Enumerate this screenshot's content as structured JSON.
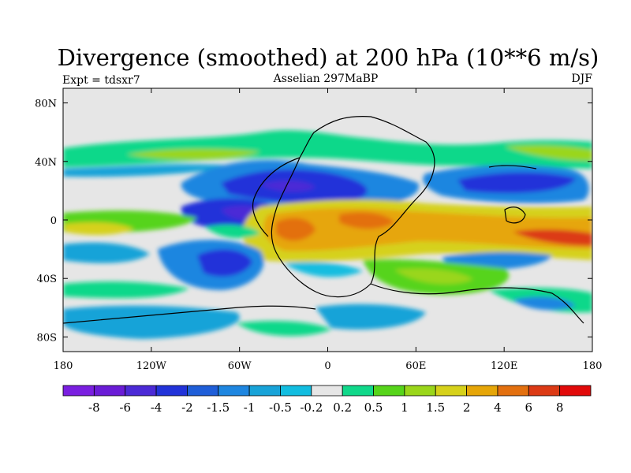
{
  "chart_data": {
    "type": "heatmap",
    "title": "Divergence (smoothed) at 200 hPa (10**6 m/s)",
    "subtitle_left": "Expt = tdsxr7",
    "subtitle_center": "Asselian 297MaBP",
    "subtitle_right": "DJF",
    "xlim": [
      -180,
      180
    ],
    "ylim": [
      -90,
      90
    ],
    "x_ticks": [
      {
        "value": -180,
        "label": "180"
      },
      {
        "value": -120,
        "label": "120W"
      },
      {
        "value": -60,
        "label": "60W"
      },
      {
        "value": 0,
        "label": "0"
      },
      {
        "value": 60,
        "label": "60E"
      },
      {
        "value": 120,
        "label": "120E"
      },
      {
        "value": 180,
        "label": "180"
      }
    ],
    "y_ticks": [
      {
        "value": 80,
        "label": "80N"
      },
      {
        "value": 40,
        "label": "40N"
      },
      {
        "value": 0,
        "label": "0"
      },
      {
        "value": -40,
        "label": "40S"
      },
      {
        "value": -80,
        "label": "80S"
      }
    ],
    "colorbar": {
      "levels": [
        "-8",
        "-6",
        "-4",
        "-2",
        "-1.5",
        "-1",
        "-0.5",
        "-0.2",
        "0.2",
        "0.5",
        "1",
        "1.5",
        "2",
        "4",
        "6",
        "8"
      ],
      "colors": [
        "#7a1fe0",
        "#6a1cd6",
        "#4b2ad6",
        "#2233d9",
        "#1f5ed8",
        "#1e86e0",
        "#18a3d8",
        "#12bde0",
        "#e6e6e6",
        "#10d88a",
        "#56d41a",
        "#9ad61a",
        "#d6d11a",
        "#e6a608",
        "#e3700f",
        "#dc3a15",
        "#e10a0a"
      ]
    },
    "field_features": [
      {
        "region": "tropical Pangea (60W-0, 0-20S)",
        "value": 4
      },
      {
        "region": "southern subtropics (0-150E, 5-25S)",
        "value": 2
      },
      {
        "region": "equatorial eastern Panthalassa (120W-60W, 0-10N)",
        "value": -4
      },
      {
        "region": "north subtropics (80W-10E, 10-35N)",
        "value": -2
      },
      {
        "region": "western Tethys (110E-160E, 20-30N)",
        "value": -2
      },
      {
        "region": "southern midlatitudes (80W-40W, 20-45S)",
        "value": -2
      },
      {
        "region": "equatorial Tethys (140E-180, 5-20S)",
        "value": 4
      },
      {
        "region": "northern midlatitude band (45-60N)",
        "value": 0.5
      }
    ]
  }
}
